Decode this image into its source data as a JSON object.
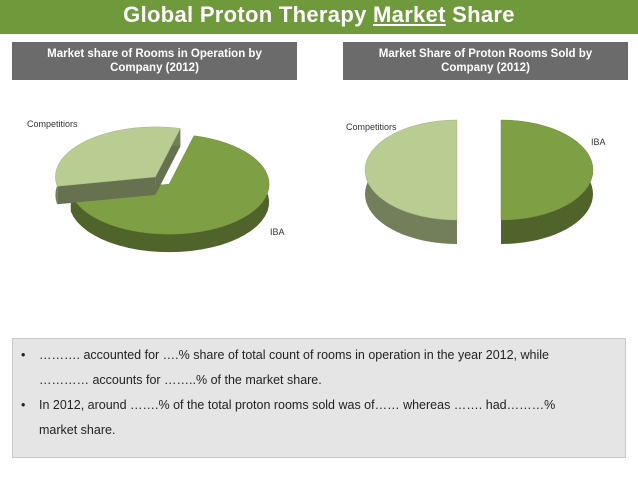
{
  "title": {
    "part1": "Global Proton Therapy ",
    "part2": "Market",
    "part3": " Share"
  },
  "headers": {
    "left": "Market share of Rooms in Operation by Company (2012)",
    "right": "Market Share of Proton Rooms Sold by Company (2012)"
  },
  "colors": {
    "green_dark": "#7f9f45",
    "green_light": "#b9cd92",
    "title_bg": "#6e9a3c",
    "header_bg": "#6b6b6b"
  },
  "chart_data": [
    {
      "type": "pie",
      "title": "Market share of Rooms in Operation by Company (2012)",
      "slices": [
        {
          "label": "IBA",
          "value": 68
        },
        {
          "label": "Competitiors",
          "value": 32
        }
      ]
    },
    {
      "type": "pie",
      "title": "Market Share of Proton Rooms Sold by Company (2012)",
      "slices": [
        {
          "label": "IBA",
          "value": 50
        },
        {
          "label": "Competitiors",
          "value": 50
        }
      ]
    }
  ],
  "bullets": [
    {
      "line1": "………. accounted for ….% share of total count of rooms in operation in the year 2012, while",
      "line2": "………… accounts for ……..% of the market share."
    },
    {
      "line1": "In 2012, around …….% of the total proton rooms sold was of…… whereas ……. had………%",
      "line2": "market share."
    }
  ],
  "bullet_char": "•"
}
